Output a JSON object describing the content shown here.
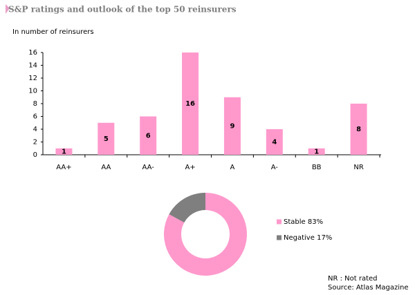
{
  "chart_data": [
    {
      "type": "bar",
      "title": "S&P ratings and outlook of the top 50 reinsurers",
      "subtitle": "In number of reinsurers",
      "categories": [
        "AA+",
        "AA",
        "AA-",
        "A+",
        "A",
        "A-",
        "BB",
        "NR"
      ],
      "values": [
        1,
        5,
        6,
        16,
        9,
        4,
        1,
        8
      ],
      "color": "#ff99cc",
      "ylim": [
        0,
        16
      ],
      "yticks": [
        0,
        2,
        4,
        6,
        8,
        10,
        12,
        14,
        16
      ],
      "grid": false
    },
    {
      "type": "donut",
      "series": [
        {
          "name": "Stable",
          "color": "#ff99cc",
          "values": [
            83
          ],
          "value_labels": [
            "83%"
          ]
        },
        {
          "name": "Negative",
          "color": "#7f7f7f",
          "values": [
            17
          ],
          "value_labels": [
            "17%"
          ]
        }
      ],
      "legend": "right",
      "annotations": [
        "NR : Not rated",
        "Source: Atlas Magazine"
      ]
    }
  ]
}
